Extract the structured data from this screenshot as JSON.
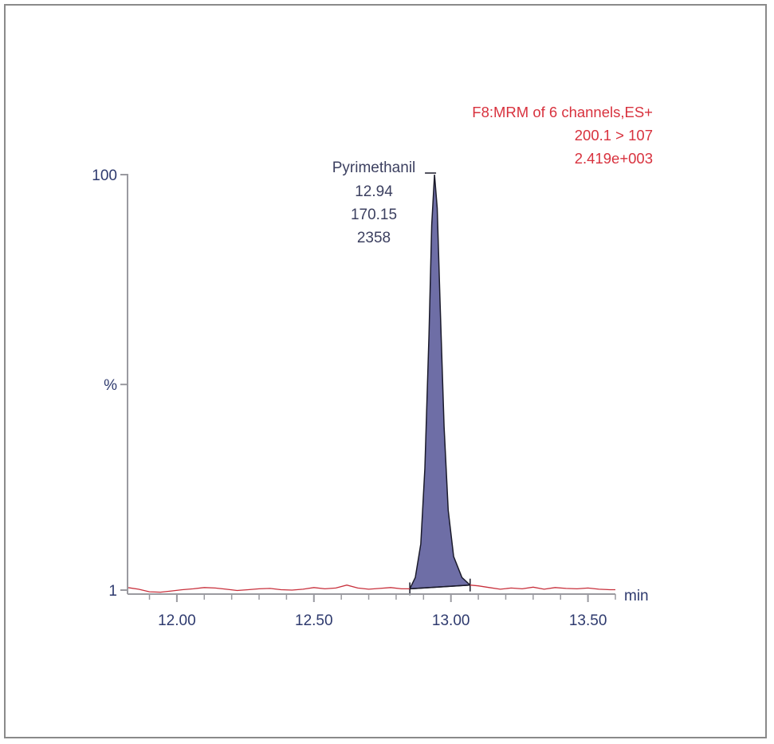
{
  "chart_data": {
    "type": "area",
    "header": {
      "function": "F8:MRM of 6 channels,ES+",
      "transition": "200.1 > 107",
      "intensity": "2.419e+003"
    },
    "xlabel": "min",
    "ylabel": "%",
    "xlim": [
      11.82,
      13.6
    ],
    "ylim": [
      1,
      100
    ],
    "x_ticks": [
      {
        "value": 12.0,
        "label": "12.00"
      },
      {
        "value": 12.5,
        "label": "12.50"
      },
      {
        "value": 13.0,
        "label": "13.00"
      },
      {
        "value": 13.5,
        "label": "13.50"
      }
    ],
    "y_ticks": [
      {
        "value": 100,
        "label": "100"
      },
      {
        "value": 50,
        "label": "%"
      },
      {
        "value": 1,
        "label": "1"
      }
    ],
    "trace_color": "#c8303c",
    "peak_fill": "#6e6ea6",
    "baseline_trace": {
      "x": [
        11.82,
        11.86,
        11.9,
        11.94,
        11.98,
        12.02,
        12.06,
        12.1,
        12.14,
        12.18,
        12.22,
        12.26,
        12.3,
        12.34,
        12.38,
        12.42,
        12.46,
        12.5,
        12.54,
        12.58,
        12.62,
        12.66,
        12.7,
        12.74,
        12.78,
        12.82,
        12.85
      ],
      "y": [
        1.6,
        1.2,
        0.6,
        0.5,
        0.8,
        1.1,
        1.3,
        1.6,
        1.5,
        1.2,
        0.9,
        1.1,
        1.3,
        1.4,
        1.1,
        1.0,
        1.2,
        1.6,
        1.3,
        1.5,
        2.2,
        1.5,
        1.2,
        1.4,
        1.6,
        1.3,
        1.3
      ]
    },
    "peak": {
      "name": "Pyrimethanil",
      "retention_time": "12.94",
      "area": "170.15",
      "height": "2358",
      "x": [
        12.85,
        12.87,
        12.89,
        12.905,
        12.92,
        12.93,
        12.94,
        12.95,
        12.96,
        12.975,
        12.99,
        13.01,
        13.04,
        13.07
      ],
      "y": [
        1.3,
        4,
        12,
        30,
        62,
        88,
        100,
        92,
        70,
        40,
        20,
        9,
        4,
        2.2
      ]
    },
    "tail_trace": {
      "x": [
        13.07,
        13.1,
        13.14,
        13.18,
        13.22,
        13.26,
        13.3,
        13.34,
        13.38,
        13.42,
        13.46,
        13.5,
        13.54,
        13.58,
        13.6
      ],
      "y": [
        2.2,
        2.0,
        1.6,
        1.2,
        1.5,
        1.3,
        1.7,
        1.2,
        1.6,
        1.4,
        1.3,
        1.5,
        1.2,
        1.1,
        1.1
      ]
    }
  }
}
